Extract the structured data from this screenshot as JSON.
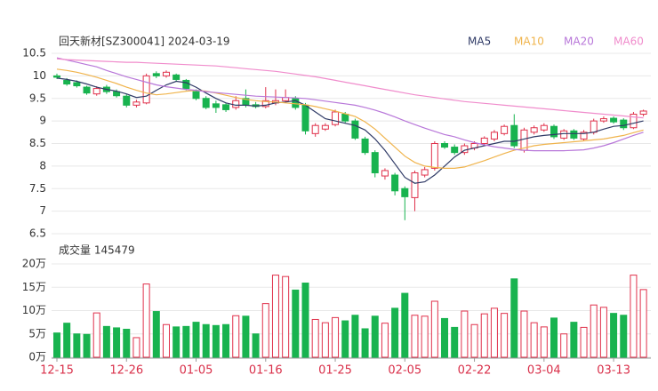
{
  "chart_data": [
    {
      "type": "candlestick",
      "title": "回天新材[SZ300041] 2024-03-19",
      "up_color": "#e0314b",
      "down_color": "#18b34f",
      "open": [
        10.0,
        9.9,
        9.85,
        9.75,
        9.6,
        9.75,
        9.65,
        9.55,
        9.35,
        9.4,
        10.05,
        10.0,
        10.02,
        9.9,
        9.65,
        9.5,
        9.38,
        9.36,
        9.3,
        9.5,
        9.36,
        9.32,
        9.4,
        9.45,
        9.5,
        9.35,
        8.72,
        8.82,
        8.92,
        9.15,
        9.0,
        8.6,
        8.3,
        7.78,
        7.8,
        7.5,
        7.3,
        7.8,
        7.95,
        8.5,
        8.42,
        8.3,
        8.4,
        8.5,
        8.6,
        8.72,
        8.9,
        8.35,
        8.75,
        8.8,
        8.88,
        8.62,
        8.78,
        8.6,
        8.75,
        9.0,
        9.06,
        9.02,
        8.85,
        9.15
      ],
      "high": [
        10.05,
        9.95,
        9.9,
        9.78,
        9.77,
        9.8,
        9.7,
        9.6,
        9.47,
        10.05,
        10.1,
        10.12,
        10.05,
        9.93,
        9.7,
        9.55,
        9.45,
        9.4,
        9.55,
        9.7,
        9.42,
        9.75,
        9.7,
        9.7,
        9.55,
        9.4,
        8.95,
        8.95,
        9.25,
        9.2,
        9.05,
        8.65,
        8.35,
        7.95,
        7.85,
        7.55,
        7.9,
        7.98,
        8.55,
        8.55,
        8.48,
        8.5,
        8.55,
        8.66,
        8.8,
        8.92,
        9.15,
        8.85,
        8.9,
        8.95,
        8.92,
        8.82,
        8.82,
        8.8,
        9.05,
        9.1,
        9.1,
        9.06,
        9.2,
        9.25
      ],
      "low": [
        9.93,
        9.78,
        9.74,
        9.58,
        9.56,
        9.6,
        9.52,
        9.3,
        9.3,
        9.37,
        9.95,
        9.96,
        9.88,
        9.68,
        9.46,
        9.26,
        9.18,
        9.2,
        9.25,
        9.3,
        9.28,
        9.28,
        9.35,
        9.4,
        9.25,
        8.7,
        8.65,
        8.78,
        8.88,
        8.95,
        8.58,
        8.25,
        7.75,
        7.7,
        7.35,
        6.8,
        7.0,
        7.75,
        7.9,
        8.38,
        8.25,
        8.25,
        8.35,
        8.45,
        8.55,
        8.68,
        8.4,
        8.3,
        8.7,
        8.76,
        8.6,
        8.58,
        8.58,
        8.56,
        8.7,
        8.96,
        8.94,
        8.8,
        8.82,
        9.1
      ],
      "close": [
        9.97,
        9.82,
        9.78,
        9.62,
        9.72,
        9.65,
        9.56,
        9.35,
        9.42,
        10.0,
        10.0,
        10.08,
        9.92,
        9.72,
        9.5,
        9.3,
        9.3,
        9.25,
        9.45,
        9.35,
        9.32,
        9.45,
        9.45,
        9.52,
        9.3,
        8.78,
        8.9,
        8.9,
        9.2,
        9.0,
        8.62,
        8.3,
        7.85,
        7.9,
        7.45,
        7.32,
        7.85,
        7.92,
        8.5,
        8.42,
        8.3,
        8.45,
        8.5,
        8.62,
        8.75,
        8.88,
        8.45,
        8.8,
        8.85,
        8.9,
        8.65,
        8.78,
        8.62,
        8.75,
        9.0,
        9.05,
        8.98,
        8.85,
        9.15,
        9.22
      ],
      "series": [
        {
          "name": "MA5",
          "color": "#2f3a66",
          "values": [
            9.95,
            9.92,
            9.88,
            9.82,
            9.75,
            9.7,
            9.66,
            9.6,
            9.52,
            9.55,
            9.68,
            9.8,
            9.88,
            9.85,
            9.75,
            9.62,
            9.5,
            9.4,
            9.35,
            9.35,
            9.33,
            9.35,
            9.4,
            9.42,
            9.45,
            9.35,
            9.2,
            9.05,
            9.0,
            8.95,
            8.9,
            8.8,
            8.6,
            8.35,
            8.05,
            7.75,
            7.62,
            7.65,
            7.8,
            8.0,
            8.2,
            8.35,
            8.4,
            8.45,
            8.5,
            8.55,
            8.55,
            8.6,
            8.65,
            8.68,
            8.7,
            8.72,
            8.72,
            8.72,
            8.75,
            8.82,
            8.88,
            8.9,
            8.95,
            9.0
          ]
        },
        {
          "name": "MA10",
          "color": "#f0b44c",
          "values": [
            10.15,
            10.12,
            10.08,
            10.03,
            9.97,
            9.9,
            9.83,
            9.75,
            9.68,
            9.62,
            9.58,
            9.6,
            9.63,
            9.66,
            9.68,
            9.66,
            9.62,
            9.57,
            9.52,
            9.48,
            9.45,
            9.43,
            9.42,
            9.4,
            9.38,
            9.36,
            9.32,
            9.27,
            9.22,
            9.16,
            9.1,
            8.98,
            8.82,
            8.62,
            8.42,
            8.22,
            8.08,
            8.0,
            7.97,
            7.95,
            7.95,
            7.98,
            8.05,
            8.12,
            8.2,
            8.28,
            8.35,
            8.4,
            8.45,
            8.48,
            8.5,
            8.52,
            8.54,
            8.56,
            8.58,
            8.6,
            8.64,
            8.68,
            8.74,
            8.8
          ]
        },
        {
          "name": "MA20",
          "color": "#b877d9",
          "values": [
            10.4,
            10.35,
            10.3,
            10.25,
            10.2,
            10.12,
            10.05,
            9.98,
            9.92,
            9.86,
            9.8,
            9.76,
            9.73,
            9.7,
            9.68,
            9.65,
            9.63,
            9.61,
            9.59,
            9.57,
            9.55,
            9.54,
            9.53,
            9.52,
            9.51,
            9.5,
            9.47,
            9.44,
            9.41,
            9.38,
            9.35,
            9.3,
            9.24,
            9.17,
            9.09,
            9.0,
            8.92,
            8.84,
            8.77,
            8.7,
            8.65,
            8.58,
            8.52,
            8.47,
            8.43,
            8.4,
            8.37,
            8.35,
            8.34,
            8.34,
            8.34,
            8.34,
            8.35,
            8.36,
            8.4,
            8.45,
            8.52,
            8.6,
            8.68,
            8.75
          ]
        },
        {
          "name": "MA60",
          "color": "#f08ccc",
          "values": [
            10.38,
            10.36,
            10.35,
            10.34,
            10.33,
            10.32,
            10.31,
            10.3,
            10.3,
            10.29,
            10.28,
            10.27,
            10.26,
            10.25,
            10.24,
            10.23,
            10.22,
            10.2,
            10.18,
            10.16,
            10.14,
            10.12,
            10.1,
            10.07,
            10.04,
            10.01,
            9.98,
            9.94,
            9.9,
            9.86,
            9.82,
            9.78,
            9.74,
            9.7,
            9.66,
            9.62,
            9.58,
            9.55,
            9.52,
            9.49,
            9.46,
            9.43,
            9.41,
            9.39,
            9.37,
            9.35,
            9.33,
            9.31,
            9.29,
            9.27,
            9.25,
            9.23,
            9.21,
            9.19,
            9.17,
            9.15,
            9.13,
            9.11,
            9.09,
            9.07
          ]
        }
      ],
      "ylim": [
        6.5,
        10.5
      ],
      "yticks": [
        6.5,
        7,
        7.5,
        8,
        8.5,
        9,
        9.5,
        10,
        10.5
      ],
      "grid": true
    },
    {
      "type": "bar",
      "title": "成交量 145479",
      "categories": [
        "12-15",
        null,
        null,
        null,
        null,
        null,
        null,
        "12-26",
        null,
        null,
        null,
        null,
        null,
        null,
        "01-05",
        null,
        null,
        null,
        null,
        null,
        null,
        "01-16",
        null,
        null,
        null,
        null,
        null,
        null,
        "01-25",
        null,
        null,
        null,
        null,
        null,
        null,
        "02-05",
        null,
        null,
        null,
        null,
        null,
        null,
        "02-22",
        null,
        null,
        null,
        null,
        null,
        null,
        "03-04",
        null,
        null,
        null,
        null,
        null,
        null,
        "03-13",
        null,
        null,
        null
      ],
      "values": [
        5.2,
        7.3,
        5.0,
        4.9,
        9.5,
        6.6,
        6.3,
        6.0,
        4.2,
        15.7,
        9.8,
        7.0,
        6.5,
        6.6,
        7.5,
        7.0,
        6.8,
        7.0,
        8.9,
        8.8,
        5.0,
        11.5,
        17.6,
        17.3,
        14.4,
        15.9,
        8.1,
        7.4,
        8.5,
        7.8,
        9.0,
        6.1,
        8.8,
        7.3,
        10.5,
        13.7,
        9.0,
        8.8,
        12.0,
        8.3,
        6.4,
        9.9,
        7.0,
        9.3,
        10.5,
        9.4,
        16.8,
        9.9,
        7.4,
        6.5,
        8.4,
        5.0,
        7.5,
        6.4,
        11.2,
        10.7,
        9.4,
        9.0,
        17.6,
        14.5
      ],
      "ylim": [
        0,
        20
      ],
      "yticks": [
        {
          "value": 0,
          "label": "0万"
        },
        {
          "value": 5,
          "label": "5万"
        },
        {
          "value": 10,
          "label": "10万"
        },
        {
          "value": 15,
          "label": "15万"
        },
        {
          "value": 20,
          "label": "20万"
        }
      ],
      "grid": true
    }
  ]
}
